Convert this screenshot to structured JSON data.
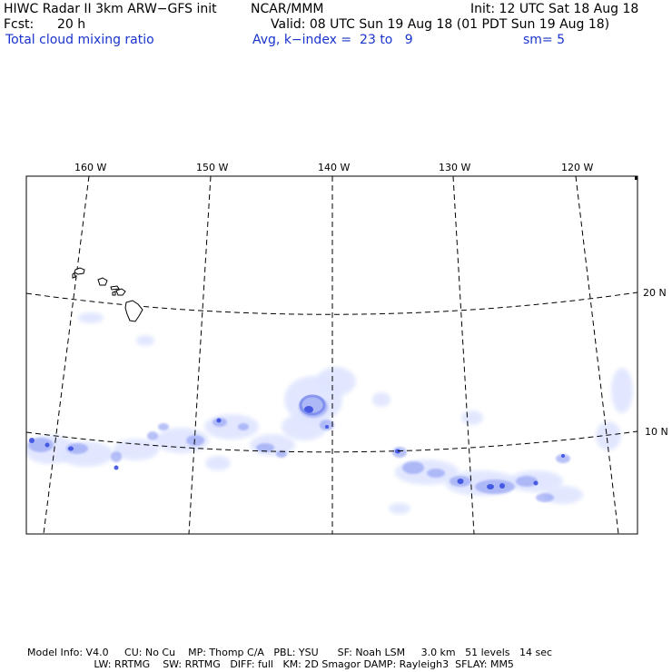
{
  "header": {
    "title": "HIWC Radar II 3km ARW−GFS init",
    "org": "NCAR/MMM",
    "init": "Init: 12 UTC Sat 18 Aug 18",
    "fcst_label": "Fcst:",
    "fcst_value": "20 h",
    "valid": "Valid: 08 UTC Sun 19 Aug 18 (01 PDT Sun 19 Aug 18)",
    "field": "Total cloud mixing ratio",
    "avg": "Avg, k−index =  23 to   9",
    "smooth": "sm= 5"
  },
  "map": {
    "lon_labels": [
      "160 W",
      "150 W",
      "140 W",
      "130 W",
      "120 W"
    ],
    "lat_labels": [
      "20 N",
      "10 N"
    ],
    "grid_style": "dashed",
    "cloud_color": "#3b4fe0",
    "land_outline": "Hawaiian Islands"
  },
  "footer": {
    "line1": "Model Info: V4.0     CU: No Cu    MP: Thomp C/A   PBL: YSU      SF: Noah LSM     3.0 km   51 levels   14 sec",
    "line2": "                     LW: RRTMG    SW: RRTMG   DIFF: full   KM: 2D Smagor DAMP: Rayleigh3  SFLAY: MM5"
  }
}
